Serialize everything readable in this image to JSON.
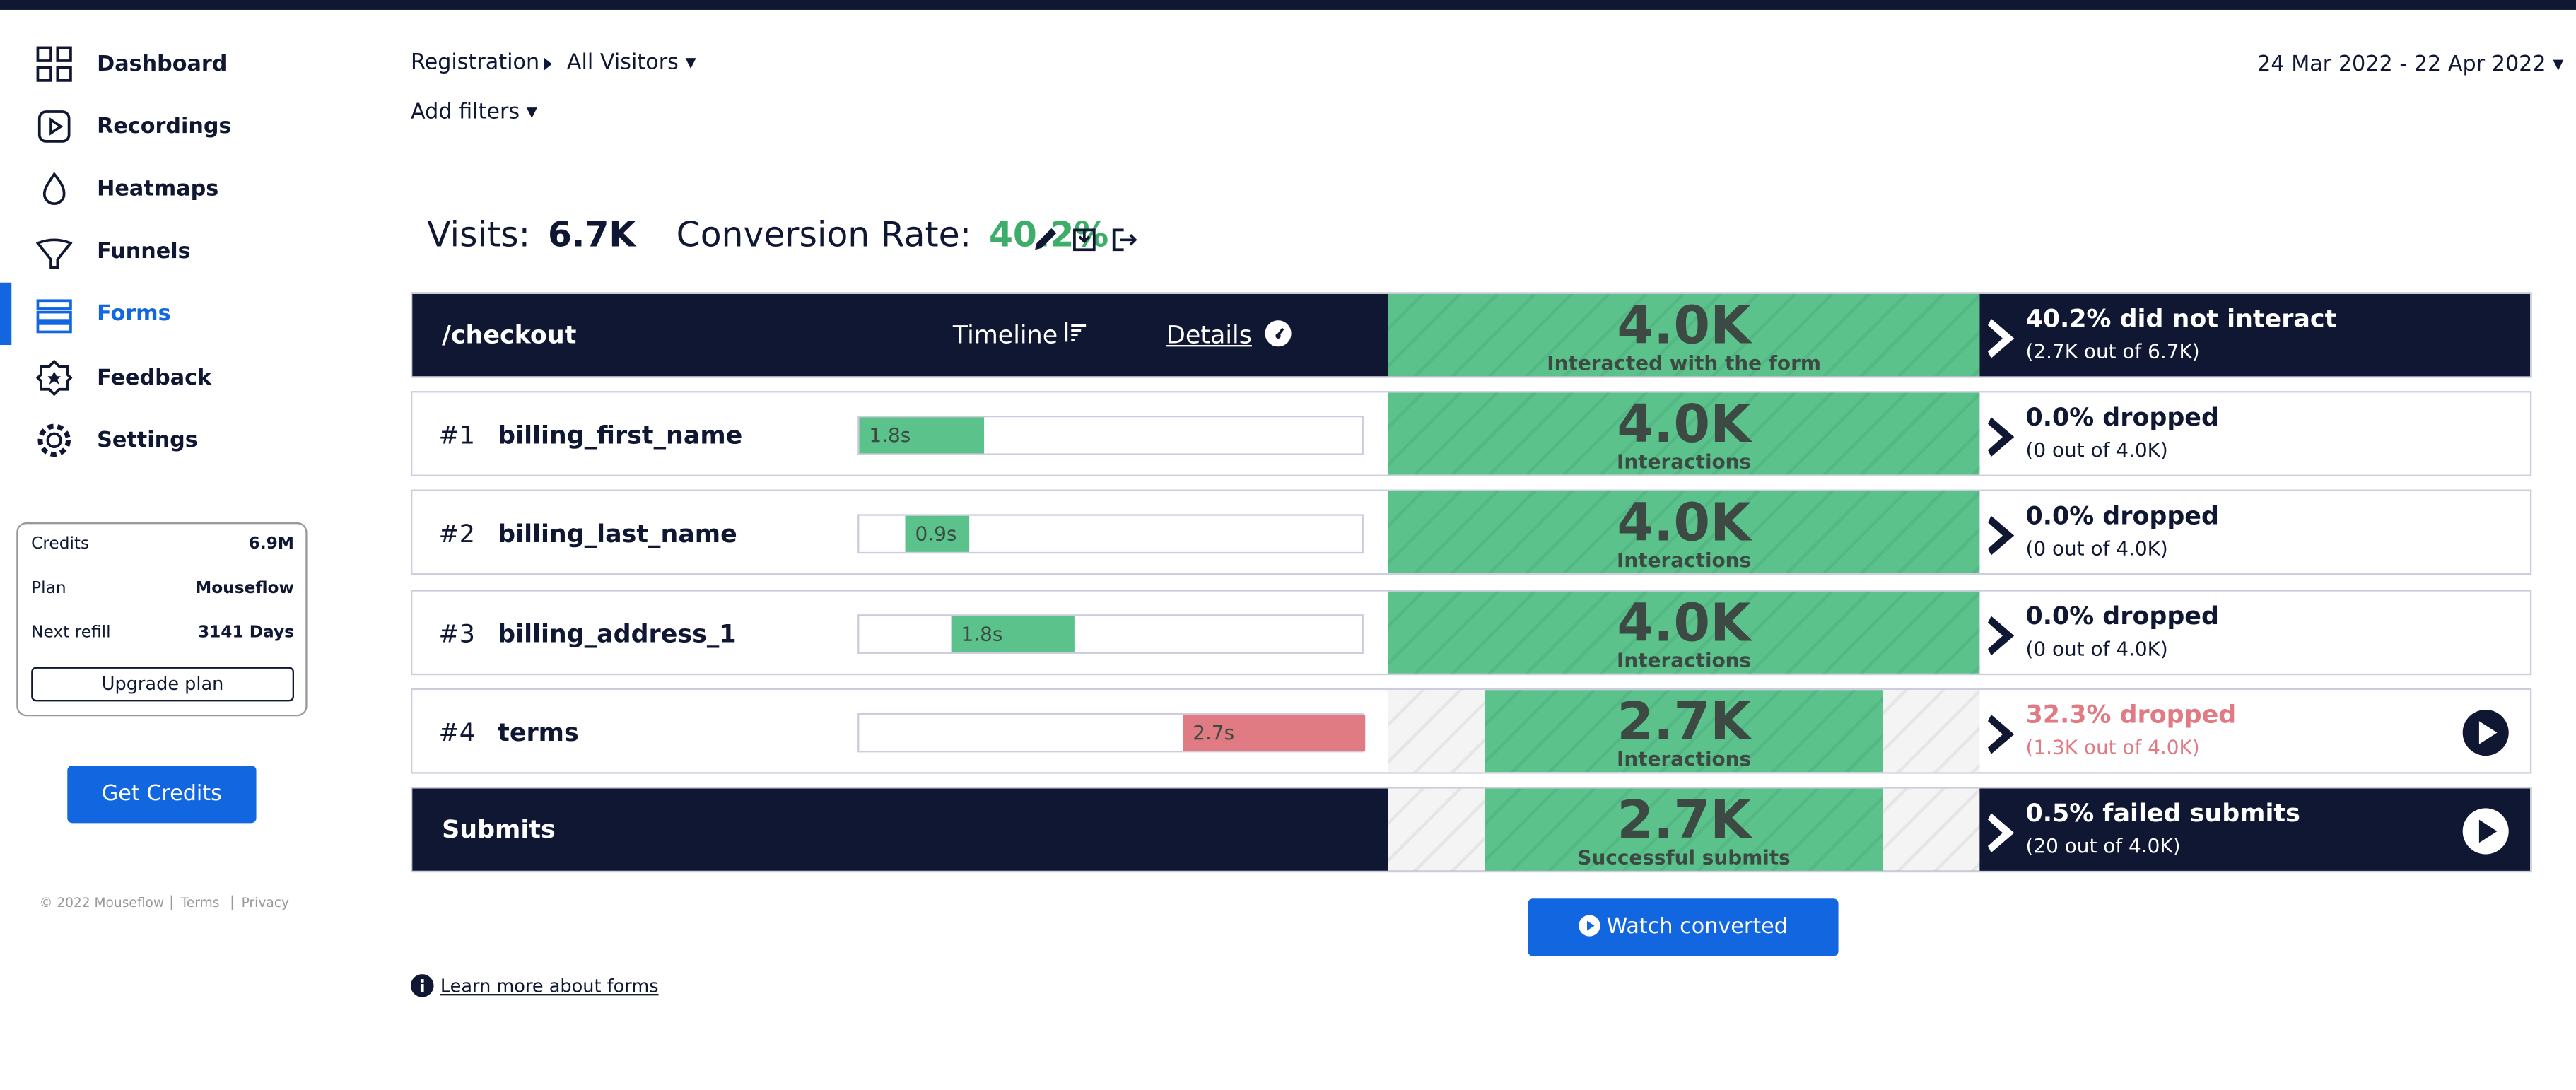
{
  "sidebar": {
    "nav": [
      "Dashboard",
      "Recordings",
      "Heatmaps",
      "Funnels",
      "Forms",
      "Feedback",
      "Settings"
    ],
    "account": {
      "rows": [
        [
          "Credits",
          "6.9M"
        ],
        [
          "Plan",
          "Mouseflow"
        ],
        [
          "Next refill",
          "3141 Days"
        ]
      ],
      "button": "Upgrade plan"
    },
    "get_credits": "Get Credits",
    "footer": [
      "© 2022 Mouseflow",
      "Terms",
      "Privacy"
    ]
  },
  "header": {
    "breadcrumb": [
      "Registration",
      "All Visitors"
    ],
    "add_filters": "Add filters",
    "date_range": "24 Mar 2022 - 22 Apr 2022"
  },
  "summary": {
    "visits_label": "Visits:",
    "visits": "6.7K",
    "conversion_label": "Conversion Rate:",
    "conversion": "40.2%"
  },
  "form_header": {
    "page": "/checkout",
    "timeline": "Timeline",
    "details": "Details",
    "count": "4.0K",
    "count_label": "Interacted with the form",
    "drop": "40.2% did not interact",
    "drop_detail": "(2.7K out of 6.7K)"
  },
  "fields": [
    {
      "rank": "#1",
      "name": "billing_first_name",
      "time": "1.8s",
      "count": "4.0K",
      "count_label": "Interactions",
      "drop": "0.0% dropped",
      "drop_detail": "(0 out of 4.0K)"
    },
    {
      "rank": "#2",
      "name": "billing_last_name",
      "time": "0.9s",
      "count": "4.0K",
      "count_label": "Interactions",
      "drop": "0.0% dropped",
      "drop_detail": "(0 out of 4.0K)"
    },
    {
      "rank": "#3",
      "name": "billing_address_1",
      "time": "1.8s",
      "count": "4.0K",
      "count_label": "Interactions",
      "drop": "0.0% dropped",
      "drop_detail": "(0 out of 4.0K)"
    },
    {
      "rank": "#4",
      "name": "terms",
      "time": "2.7s",
      "count": "2.7K",
      "count_label": "Interactions",
      "drop": "32.3% dropped",
      "drop_detail": "(1.3K out of 4.0K)"
    }
  ],
  "submits": {
    "label": "Submits",
    "count": "2.7K",
    "count_label": "Successful submits",
    "drop": "0.5% failed submits",
    "drop_detail": "(20 out of 4.0K)"
  },
  "watch_button": "Watch converted",
  "learn_more": "Learn more about forms"
}
